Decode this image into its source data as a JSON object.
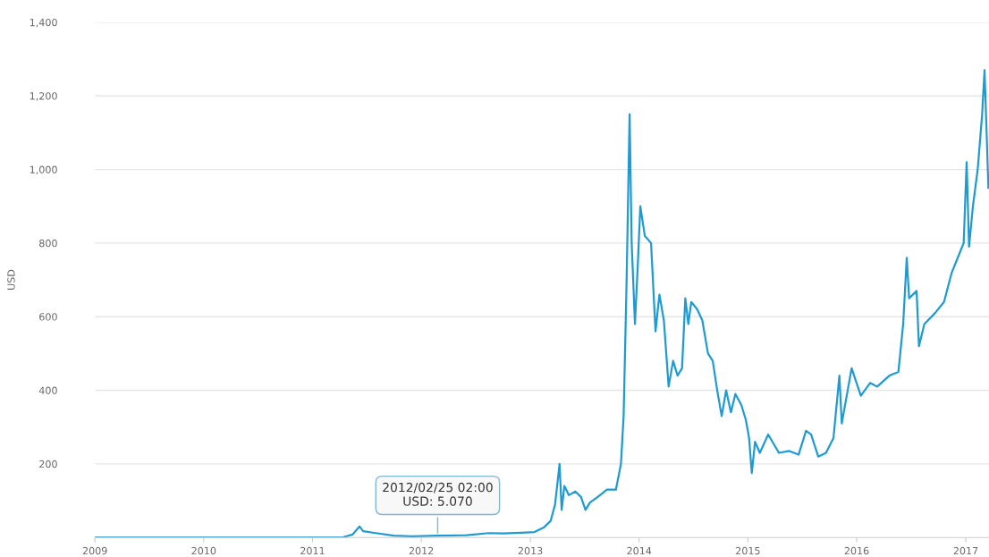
{
  "chart_data": {
    "type": "line",
    "ylabel": "USD",
    "xlim": [
      "2009-01-01",
      "2017-03-20"
    ],
    "ylim": [
      0,
      1400
    ],
    "xticks": [
      "2009",
      "2010",
      "2011",
      "2012",
      "2013",
      "2014",
      "2015",
      "2016",
      "2017"
    ],
    "yticks": [
      200,
      400,
      600,
      800,
      {
        "value": 1000,
        "label": "1,000"
      },
      {
        "value": 1200,
        "label": "1,200"
      },
      {
        "value": 1400,
        "label": "1,400"
      }
    ],
    "grid": "y",
    "marker": "none",
    "line_style": "solid",
    "annotations": [
      {
        "text": "2012/02/25 02:00\nUSD: 5.070",
        "x": "2012-02-25",
        "y": 5.07
      }
    ],
    "series": [
      {
        "color": "#1f9bd1",
        "x": [
          "2009-01-01",
          "2010-07-17",
          "2011-01-15",
          "2011-04-15",
          "2011-05-15",
          "2011-06-08",
          "2011-06-20",
          "2011-08-01",
          "2011-10-01",
          "2011-12-01",
          "2012-02-25",
          "2012-06-01",
          "2012-08-15",
          "2012-10-01",
          "2012-12-01",
          "2013-01-15",
          "2013-02-15",
          "2013-03-10",
          "2013-03-25",
          "2013-04-09",
          "2013-04-16",
          "2013-04-25",
          "2013-05-10",
          "2013-06-01",
          "2013-06-20",
          "2013-07-05",
          "2013-07-20",
          "2013-08-15",
          "2013-09-15",
          "2013-10-15",
          "2013-11-01",
          "2013-11-10",
          "2013-11-20",
          "2013-11-30",
          "2013-12-07",
          "2013-12-18",
          "2013-12-28",
          "2014-01-05",
          "2014-01-20",
          "2014-02-10",
          "2014-02-25",
          "2014-03-10",
          "2014-03-25",
          "2014-04-10",
          "2014-04-25",
          "2014-05-10",
          "2014-05-25",
          "2014-06-05",
          "2014-06-15",
          "2014-06-25",
          "2014-07-15",
          "2014-08-01",
          "2014-08-20",
          "2014-09-05",
          "2014-09-20",
          "2014-10-05",
          "2014-10-20",
          "2014-11-05",
          "2014-11-20",
          "2014-12-10",
          "2014-12-25",
          "2015-01-05",
          "2015-01-14",
          "2015-01-25",
          "2015-02-10",
          "2015-03-10",
          "2015-04-15",
          "2015-05-20",
          "2015-06-20",
          "2015-07-15",
          "2015-08-01",
          "2015-08-25",
          "2015-09-20",
          "2015-10-15",
          "2015-11-04",
          "2015-11-12",
          "2015-12-15",
          "2016-01-15",
          "2016-02-15",
          "2016-03-10",
          "2016-04-20",
          "2016-05-20",
          "2016-06-05",
          "2016-06-17",
          "2016-06-25",
          "2016-07-20",
          "2016-07-28",
          "2016-08-15",
          "2016-09-20",
          "2016-10-20",
          "2016-11-15",
          "2016-12-10",
          "2016-12-25",
          "2017-01-04",
          "2017-01-12",
          "2017-01-25",
          "2017-02-10",
          "2017-02-25",
          "2017-03-05",
          "2017-03-12",
          "2017-03-18"
        ],
        "values": [
          0,
          0,
          0,
          1,
          8,
          30,
          17,
          12,
          5,
          3,
          5,
          6,
          12,
          11,
          13,
          15,
          27,
          45,
          90,
          200,
          75,
          140,
          115,
          125,
          110,
          75,
          95,
          110,
          130,
          130,
          200,
          330,
          700,
          1150,
          800,
          580,
          750,
          900,
          820,
          800,
          560,
          660,
          590,
          410,
          480,
          440,
          460,
          650,
          580,
          640,
          620,
          590,
          500,
          480,
          400,
          330,
          400,
          340,
          390,
          360,
          320,
          270,
          175,
          260,
          230,
          280,
          230,
          235,
          225,
          290,
          280,
          220,
          230,
          270,
          440,
          310,
          460,
          385,
          420,
          410,
          440,
          450,
          580,
          760,
          650,
          670,
          520,
          580,
          610,
          640,
          720,
          770,
          800,
          1020,
          790,
          900,
          1000,
          1150,
          1270,
          1100,
          950
        ]
      }
    ]
  }
}
